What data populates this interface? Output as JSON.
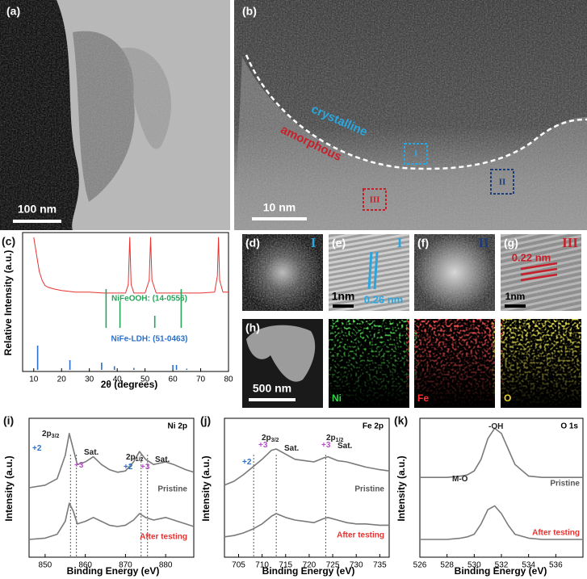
{
  "panels": {
    "a": {
      "label": "(a)",
      "scale_bar": "100 nm"
    },
    "b": {
      "label": "(b)",
      "scale_bar": "10 nm",
      "regions": [
        "crystalline",
        "amorphous"
      ],
      "markers": [
        "I",
        "II",
        "III"
      ]
    },
    "d": {
      "label": "(d)",
      "marker": "I"
    },
    "e": {
      "label": "(e)",
      "marker": "I",
      "scale_bar": "1nm",
      "spacing": "0.26 nm"
    },
    "f": {
      "label": "(f)",
      "marker": "II"
    },
    "g": {
      "label": "(g)",
      "marker": "III",
      "scale_bar": "1nm",
      "spacing": "0.22 nm"
    },
    "h": {
      "label": "(h)",
      "scale_bar": "500 nm",
      "elements": [
        "Ni",
        "Fe",
        "O"
      ]
    }
  },
  "chart_data": [
    {
      "type": "line",
      "panel_label": "(c)",
      "x_label": "2θ (degrees)",
      "y_label": "Relative Intensity (a.u.)",
      "xlim": [
        6,
        80
      ],
      "xticks": [
        10,
        20,
        30,
        40,
        50,
        60,
        70,
        80
      ],
      "ylim": [
        0,
        100
      ],
      "series": [
        {
          "color": "#e8312f",
          "x": [
            10,
            11,
            12,
            13,
            14,
            15,
            17,
            20,
            25,
            30,
            35,
            40,
            43,
            44,
            44.5,
            45,
            46,
            50,
            51.5,
            52,
            52.5,
            54,
            60,
            70,
            75,
            76,
            76.4,
            76.8,
            78,
            80
          ],
          "values": [
            100,
            80,
            60,
            50,
            44,
            42,
            40,
            38,
            36,
            36,
            35,
            35,
            35,
            45,
            100,
            45,
            35,
            35,
            50,
            100,
            50,
            35,
            35,
            35,
            36,
            55,
            100,
            50,
            36,
            36
          ]
        }
      ],
      "references": [
        {
          "name": "NiFeOOH: (14-0556)",
          "color": "#27a35a",
          "x": [
            36,
            41,
            53.5,
            63
          ],
          "values": [
            80,
            55,
            25,
            80
          ]
        },
        {
          "name": "NiFe-LDH: (51-0463)",
          "color": "#2a6fc9",
          "x": [
            11.4,
            23,
            34.4,
            39,
            46,
            60,
            61.3,
            65
          ],
          "values": [
            100,
            40,
            30,
            15,
            8,
            20,
            20,
            5
          ]
        }
      ]
    },
    {
      "type": "line",
      "panel_label": "(i)",
      "title": "Ni 2p",
      "x_label": "Binding Energy (eV)",
      "y_label": "Intensity (a.u.)",
      "xlim": [
        846,
        887
      ],
      "xticks": [
        850,
        860,
        870,
        880
      ],
      "ylim": [
        0,
        100
      ],
      "series": [
        {
          "name": "Pristine",
          "color": "#7a7a7a",
          "label_color": "#555555",
          "x": [
            846,
            850,
            853,
            855,
            856,
            857,
            858,
            860,
            862,
            864,
            866,
            868,
            870,
            872,
            873.5,
            875,
            877,
            880,
            882,
            885,
            887
          ],
          "values": [
            50,
            52,
            57,
            75,
            92,
            80,
            68,
            70,
            74,
            68,
            64,
            62,
            63,
            70,
            78,
            72,
            68,
            70,
            68,
            64,
            62
          ]
        },
        {
          "name": "After testing",
          "color": "#7a7a7a",
          "label_color": "#e8312f",
          "x": [
            846,
            850,
            853,
            855,
            856,
            857,
            858,
            860,
            862,
            864,
            866,
            868,
            870,
            872,
            873.5,
            875,
            877,
            880,
            882,
            885,
            887
          ],
          "values": [
            10,
            11,
            14,
            24,
            38,
            32,
            22,
            24,
            27,
            24,
            21,
            20,
            21,
            25,
            30,
            27,
            25,
            27,
            25,
            22,
            20
          ]
        }
      ],
      "reference_lines": [
        856.3,
        857.8,
        873.9,
        875.5
      ],
      "annotations": [
        {
          "text": "2p",
          "sub": "3/2",
          "color": "#222222"
        },
        {
          "text": "+2",
          "color": "#2a6fc9"
        },
        {
          "text": "+3",
          "color": "#b64fc8"
        },
        {
          "text": "Sat.",
          "color": "#222222"
        },
        {
          "text": "2p",
          "sub": "1/2",
          "color": "#222222"
        },
        {
          "text": "+2",
          "color": "#2a6fc9"
        },
        {
          "text": "+3",
          "color": "#b64fc8"
        },
        {
          "text": "Sat.",
          "color": "#222222"
        }
      ]
    },
    {
      "type": "line",
      "panel_label": "(j)",
      "title": "Fe 2p",
      "x_label": "Binding Energy (eV)",
      "y_label": "Intensity (a.u.)",
      "xlim": [
        702,
        737
      ],
      "xticks": [
        705,
        710,
        715,
        720,
        725,
        730,
        735
      ],
      "ylim": [
        0,
        100
      ],
      "series": [
        {
          "name": "Pristine",
          "color": "#7a7a7a",
          "label_color": "#555555",
          "x": [
            702,
            704,
            706,
            708,
            710,
            712,
            713,
            715,
            717,
            719,
            721,
            723,
            724,
            726,
            728,
            730,
            732,
            735,
            737
          ],
          "values": [
            52,
            55,
            60,
            66,
            72,
            79,
            80,
            76,
            72,
            71,
            70,
            73,
            74,
            71,
            70,
            68,
            66,
            64,
            63
          ]
        },
        {
          "name": "After testing",
          "color": "#7a7a7a",
          "label_color": "#e8312f",
          "x": [
            702,
            704,
            706,
            708,
            710,
            712,
            713,
            715,
            717,
            719,
            721,
            723,
            724,
            726,
            728,
            730,
            732,
            735,
            737
          ],
          "values": [
            12,
            13,
            15,
            18,
            22,
            28,
            30,
            27,
            25,
            24,
            23,
            26,
            27,
            25,
            23,
            22,
            22,
            21,
            21
          ]
        }
      ],
      "reference_lines": [
        708.2,
        713,
        723.5
      ],
      "annotations": [
        {
          "text": "2p",
          "sub": "3/2",
          "color": "#222222"
        },
        {
          "text": "+2",
          "color": "#2a6fc9"
        },
        {
          "text": "+3",
          "color": "#b64fc8"
        },
        {
          "text": "Sat.",
          "color": "#222222"
        },
        {
          "text": "2p",
          "sub": "1/2",
          "color": "#222222"
        },
        {
          "text": "+3",
          "color": "#b64fc8"
        },
        {
          "text": "Sat.",
          "color": "#222222"
        }
      ]
    },
    {
      "type": "line",
      "panel_label": "(k)",
      "title": "O 1s",
      "x_label": "Binding Energy (eV)",
      "y_label": "Intensity (a.u.)",
      "xlim": [
        526,
        538
      ],
      "xticks": [
        526,
        528,
        530,
        532,
        534,
        536
      ],
      "ylim": [
        0,
        100
      ],
      "series": [
        {
          "name": "Pristine",
          "color": "#7a7a7a",
          "label_color": "#555555",
          "x": [
            526,
            527,
            528,
            529,
            529.5,
            530,
            530.5,
            531,
            531.5,
            532,
            532.5,
            533,
            534,
            535,
            536,
            538
          ],
          "values": [
            58,
            58,
            58,
            59,
            60,
            63,
            72,
            88,
            96,
            92,
            80,
            68,
            59,
            58,
            58,
            58
          ]
        },
        {
          "name": "After testing",
          "color": "#7a7a7a",
          "label_color": "#e8312f",
          "x": [
            526,
            527,
            528,
            529,
            529.5,
            530,
            530.5,
            531,
            531.5,
            532,
            532.5,
            533,
            534,
            535,
            536,
            538
          ],
          "values": [
            10,
            10,
            10,
            11,
            12,
            14,
            22,
            33,
            36,
            30,
            21,
            14,
            11,
            10,
            10,
            10
          ]
        }
      ],
      "annotations": [
        {
          "text": "-OH",
          "color": "#222222"
        },
        {
          "text": "M-O",
          "color": "#222222"
        }
      ]
    }
  ]
}
